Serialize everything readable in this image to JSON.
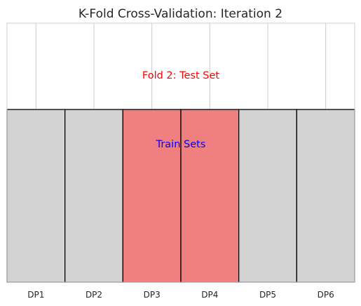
{
  "chart_data": {
    "type": "bar",
    "title": "K-Fold Cross-Validation: Iteration 2",
    "xlabel": "",
    "ylabel": "",
    "categories": [
      "DP1",
      "DP2",
      "DP3",
      "DP4",
      "DP5",
      "DP6"
    ],
    "values": [
      1,
      1,
      1,
      1,
      1,
      1
    ],
    "ylim": [
      0,
      1.5
    ],
    "grid": true,
    "bar_colors": [
      "#d3d3d3",
      "#d3d3d3",
      "#f08080",
      "#f08080",
      "#d3d3d3",
      "#d3d3d3"
    ],
    "bar_edge_color": "#000000",
    "annotations": [
      {
        "text": "Fold 2: Test Set",
        "x": 2.5,
        "y": 1.2,
        "color": "#ff0000"
      },
      {
        "text": "Train Sets",
        "x": 2.5,
        "y": 0.8,
        "color": "#0000ff"
      }
    ]
  }
}
